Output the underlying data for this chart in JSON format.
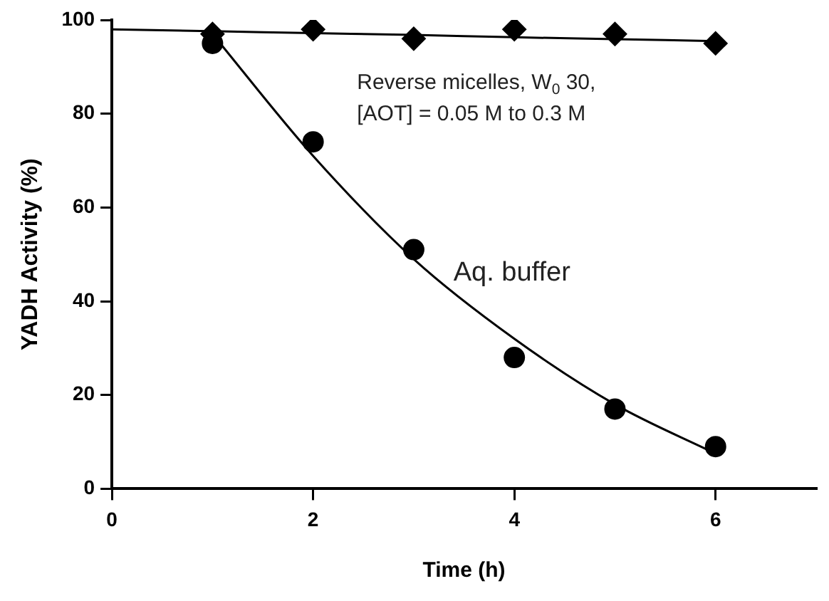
{
  "chart_data": {
    "type": "scatter",
    "xlabel": "Time (h)",
    "ylabel": "YADH Activity (%)",
    "xlim": [
      0,
      7
    ],
    "xticks": [
      0,
      2,
      4,
      6
    ],
    "ylim": [
      0,
      100
    ],
    "yticks": [
      0,
      20,
      40,
      60,
      80,
      100
    ],
    "grid": false,
    "legend": false,
    "series": [
      {
        "name": "Reverse micelles, W$_{0}$ 30, [AOT] = 0.05 M to 0.3 M",
        "marker": "diamond",
        "color": "#000000",
        "x": [
          1,
          2,
          3,
          4,
          5,
          6
        ],
        "values": [
          97,
          98,
          96,
          98,
          97,
          95
        ]
      },
      {
        "name": "Aq. buffer",
        "marker": "circle",
        "color": "#000000",
        "x": [
          1,
          2,
          3,
          4,
          5,
          6
        ],
        "values": [
          95,
          74,
          51,
          28,
          17,
          9
        ]
      },
      {
        "type": "line",
        "marker": "none",
        "color": "#000000",
        "x": [
          0,
          1,
          2,
          3,
          4,
          5,
          6
        ],
        "values": [
          98,
          97.6,
          97.2,
          96.8,
          96.3,
          95.9,
          95.5
        ]
      },
      {
        "type": "line",
        "marker": "none",
        "color": "#000000",
        "x": [
          1,
          2,
          3,
          4,
          5,
          6
        ],
        "values": [
          97,
          71,
          49,
          32,
          18,
          7.5
        ]
      }
    ]
  }
}
